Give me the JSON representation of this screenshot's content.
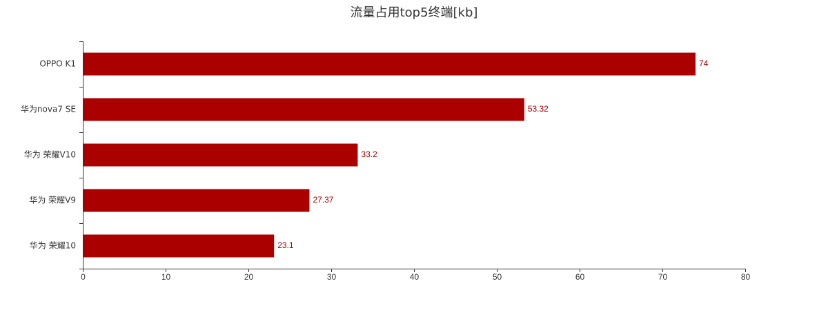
{
  "chart_data": {
    "type": "bar",
    "orientation": "horizontal",
    "title": "流量占用top5终端[kb]",
    "xlabel": "",
    "ylabel": "",
    "categories": [
      "OPPO K1",
      "华为nova7 SE",
      "华为 荣耀V10",
      "华为 荣耀V9",
      "华为 荣耀10"
    ],
    "values": [
      74,
      53.32,
      33.2,
      27.37,
      23.1
    ],
    "value_labels": [
      "74",
      "53.32",
      "33.2",
      "27.37",
      "23.1"
    ],
    "xlim": [
      0,
      80
    ],
    "xticks": [
      0,
      10,
      20,
      30,
      40,
      50,
      60,
      70,
      80
    ],
    "grid": false,
    "legend": "none",
    "colors": {
      "bar": "#ab0000",
      "data_label": "#ab0000",
      "axis": "#333333",
      "text": "#333333"
    }
  }
}
